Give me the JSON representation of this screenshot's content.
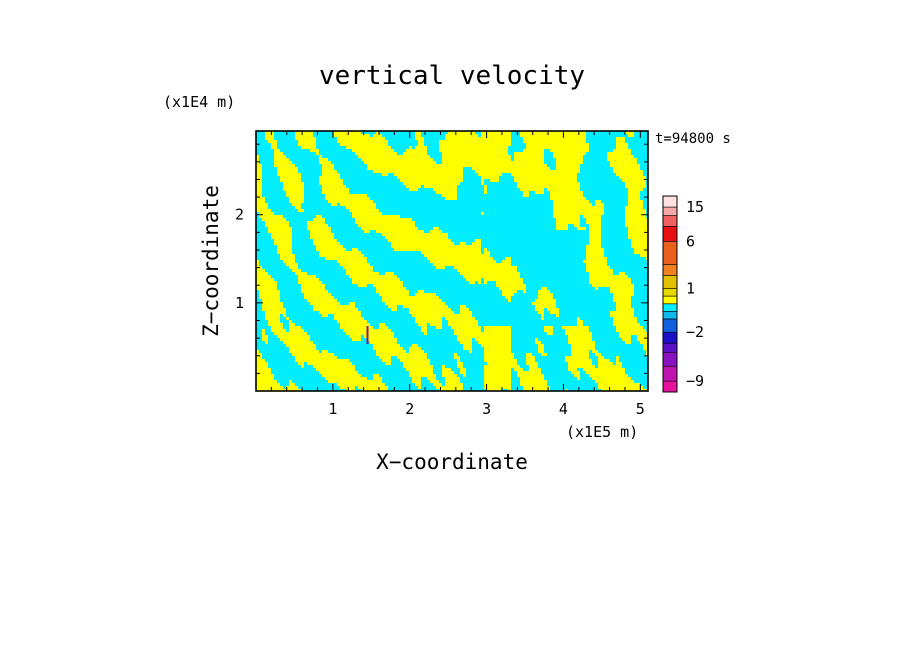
{
  "chart_data": {
    "type": "heatmap",
    "title": "vertical velocity",
    "xlabel": "X−coordinate",
    "ylabel": "Z−coordinate",
    "x_unit": "(x1E5 m)",
    "y_unit": "(x1E4 m)",
    "time_label": "t=94800 s",
    "x_ticks": [
      "1",
      "2",
      "3",
      "4",
      "5"
    ],
    "x_tick_values": [
      1,
      2,
      3,
      4,
      5
    ],
    "y_ticks": [
      "1",
      "2"
    ],
    "y_tick_values": [
      1,
      2
    ],
    "xlim": [
      0,
      5.1
    ],
    "ylim": [
      0,
      2.95
    ],
    "colorbar": {
      "labels": [
        "15",
        "6",
        "1",
        "−2",
        "−9"
      ],
      "label_values": [
        15,
        6,
        1,
        -2,
        -9
      ],
      "levels": [
        -12,
        -9,
        -6,
        -4,
        -3,
        -2,
        -1,
        -0.5,
        0,
        0.5,
        1,
        2,
        3,
        6,
        9,
        12,
        15,
        20
      ],
      "colors": [
        "#e6119c",
        "#c014b0",
        "#8a10c0",
        "#5a10c8",
        "#1a10c8",
        "#1060e0",
        "#10b8f0",
        "#00eeff",
        "#ffff00",
        "#e8d800",
        "#e0c000",
        "#f08020",
        "#e8601c",
        "#e81010",
        "#f06060",
        "#f4a8a8",
        "#fde0e0"
      ]
    },
    "field_colors": {
      "positive": "#ffff00",
      "negative": "#00eeff",
      "strong_negative": "#8a1080"
    }
  }
}
